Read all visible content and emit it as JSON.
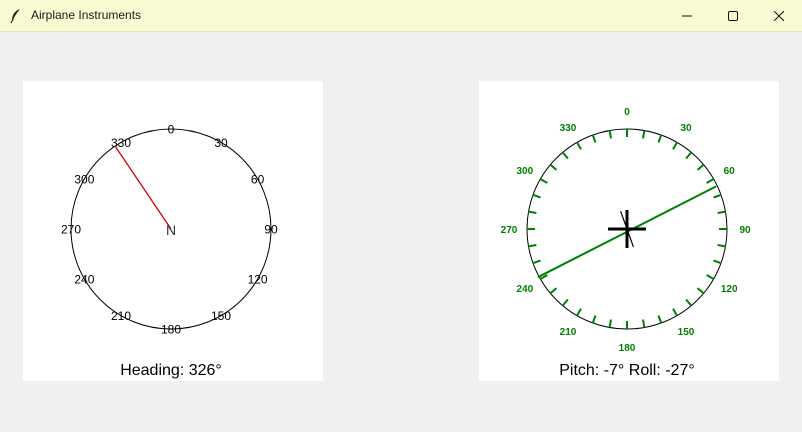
{
  "window": {
    "title": "Airplane Instruments",
    "icons": {
      "app": "feather-icon",
      "minimize": "minimize-icon",
      "maximize": "maximize-icon",
      "close": "close-icon"
    }
  },
  "heading_gauge": {
    "labels": [
      "0",
      "30",
      "60",
      "90",
      "120",
      "150",
      "180",
      "210",
      "240",
      "270",
      "300",
      "330"
    ],
    "center_label": "N",
    "heading_deg": 326,
    "readout": "Heading: 326°",
    "needle_color": "#cc0000",
    "dial_color": "#000000"
  },
  "attitude_gauge": {
    "labels": [
      "0",
      "30",
      "60",
      "90",
      "120",
      "150",
      "180",
      "210",
      "240",
      "270",
      "300",
      "330"
    ],
    "pitch_deg": -7,
    "roll_deg": -27,
    "readout": "Pitch: -7° Roll: -27°",
    "scale_color": "#008000",
    "crosshair_color": "#000000"
  }
}
